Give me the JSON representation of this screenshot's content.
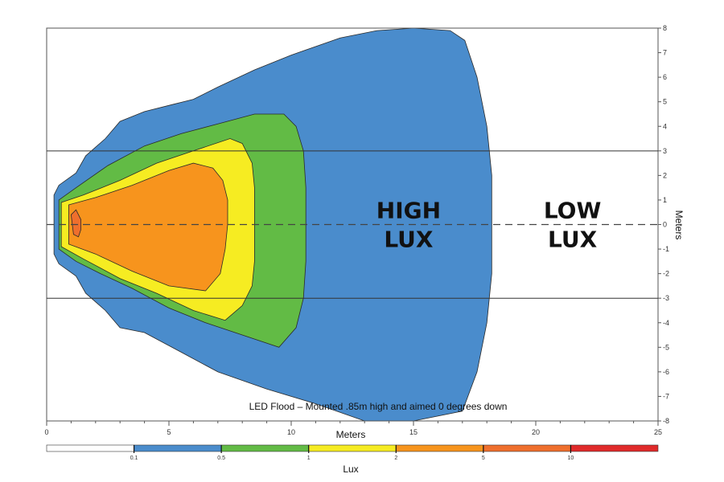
{
  "chart_data": {
    "type": "contour",
    "caption": "LED Flood – Mounted .85m high and aimed 0 degrees down",
    "xlabel": "Meters",
    "ylabel": "Meters",
    "xlim": [
      0,
      25
    ],
    "ylim": [
      -8,
      8
    ],
    "x_ticks": [
      "0",
      "5",
      "10",
      "15",
      "20",
      "25"
    ],
    "y_ticks": [
      "8",
      "7",
      "6",
      "5",
      "4",
      "3",
      "2",
      "1",
      "0",
      "-1",
      "-2",
      "-3",
      "-4",
      "-5",
      "-6",
      "-7",
      "-8"
    ],
    "reference_lines": {
      "y": [
        3,
        -3
      ],
      "dashed_y": 0
    },
    "annotations": [
      {
        "text_lines": [
          "HIGH",
          "LUX"
        ],
        "x": 14.8,
        "y": 0
      },
      {
        "text_lines": [
          "LOW",
          "LUX"
        ],
        "x": 21.5,
        "y": 0
      }
    ],
    "colorbar": {
      "title": "Lux",
      "ticks": [
        "0.1",
        "0.5",
        "1",
        "2",
        "5",
        "10"
      ],
      "colors": [
        "#ffffff",
        "#4a8ccc",
        "#62bb45",
        "#f6ec22",
        "#f7941d",
        "#ef6f2d",
        "#e02a2a"
      ]
    },
    "contours": [
      {
        "level": 0.1,
        "color": "#4a8ccc",
        "outline": [
          [
            0.3,
            1.2
          ],
          [
            0.5,
            1.6
          ],
          [
            1.2,
            2.1
          ],
          [
            1.6,
            2.8
          ],
          [
            2.4,
            3.5
          ],
          [
            3.0,
            4.2
          ],
          [
            3.5,
            4.4
          ],
          [
            4.0,
            4.6
          ],
          [
            5.2,
            4.9
          ],
          [
            6.0,
            5.1
          ],
          [
            7.0,
            5.6
          ],
          [
            8.5,
            6.3
          ],
          [
            10.0,
            6.9
          ],
          [
            12.0,
            7.6
          ],
          [
            13.5,
            7.9
          ],
          [
            15.0,
            8.0
          ],
          [
            16.5,
            7.9
          ],
          [
            17.1,
            7.5
          ],
          [
            17.6,
            6.0
          ],
          [
            18.0,
            4.0
          ],
          [
            18.2,
            2.0
          ],
          [
            18.2,
            0.0
          ],
          [
            18.2,
            -2.0
          ],
          [
            18.0,
            -4.0
          ],
          [
            17.6,
            -6.0
          ],
          [
            17.0,
            -7.6
          ],
          [
            15.0,
            -8.0
          ],
          [
            13.0,
            -8.0
          ],
          [
            11.0,
            -7.3
          ],
          [
            9.0,
            -6.7
          ],
          [
            7.0,
            -6.0
          ],
          [
            5.5,
            -5.2
          ],
          [
            4.0,
            -4.4
          ],
          [
            3.0,
            -4.2
          ],
          [
            2.4,
            -3.5
          ],
          [
            1.6,
            -2.8
          ],
          [
            1.2,
            -2.1
          ],
          [
            0.5,
            -1.6
          ],
          [
            0.3,
            -1.2
          ]
        ]
      },
      {
        "level": 0.5,
        "color": "#62bb45",
        "outline": [
          [
            0.5,
            1.0
          ],
          [
            1.2,
            1.5
          ],
          [
            2.5,
            2.4
          ],
          [
            4.0,
            3.2
          ],
          [
            5.5,
            3.7
          ],
          [
            7.0,
            4.1
          ],
          [
            8.5,
            4.5
          ],
          [
            9.7,
            4.5
          ],
          [
            10.2,
            4.0
          ],
          [
            10.5,
            3.0
          ],
          [
            10.6,
            1.5
          ],
          [
            10.6,
            0.0
          ],
          [
            10.6,
            -1.5
          ],
          [
            10.5,
            -3.0
          ],
          [
            10.2,
            -4.2
          ],
          [
            9.5,
            -5.0
          ],
          [
            8.0,
            -4.5
          ],
          [
            6.5,
            -4.0
          ],
          [
            5.0,
            -3.4
          ],
          [
            3.5,
            -2.6
          ],
          [
            2.2,
            -2.0
          ],
          [
            1.2,
            -1.5
          ],
          [
            0.5,
            -1.0
          ]
        ]
      },
      {
        "level": 1,
        "color": "#f6ec22",
        "outline": [
          [
            0.6,
            0.9
          ],
          [
            1.5,
            1.2
          ],
          [
            3.0,
            1.8
          ],
          [
            4.5,
            2.5
          ],
          [
            6.0,
            3.0
          ],
          [
            7.5,
            3.5
          ],
          [
            8.0,
            3.3
          ],
          [
            8.4,
            2.5
          ],
          [
            8.5,
            1.5
          ],
          [
            8.5,
            0.0
          ],
          [
            8.5,
            -1.5
          ],
          [
            8.4,
            -2.5
          ],
          [
            8.0,
            -3.3
          ],
          [
            7.3,
            -3.9
          ],
          [
            6.0,
            -3.5
          ],
          [
            4.5,
            -2.8
          ],
          [
            3.0,
            -2.2
          ],
          [
            1.5,
            -1.4
          ],
          [
            0.6,
            -0.9
          ]
        ]
      },
      {
        "level": 2,
        "color": "#f7941d",
        "outline": [
          [
            0.9,
            0.8
          ],
          [
            2.0,
            1.1
          ],
          [
            3.5,
            1.6
          ],
          [
            5.0,
            2.2
          ],
          [
            6.0,
            2.5
          ],
          [
            6.8,
            2.3
          ],
          [
            7.2,
            1.8
          ],
          [
            7.4,
            1.0
          ],
          [
            7.4,
            0.0
          ],
          [
            7.3,
            -1.0
          ],
          [
            7.1,
            -2.0
          ],
          [
            6.5,
            -2.7
          ],
          [
            5.0,
            -2.5
          ],
          [
            3.5,
            -1.9
          ],
          [
            2.0,
            -1.2
          ],
          [
            0.9,
            -0.8
          ]
        ]
      },
      {
        "level": 5,
        "color": "#ef6f2d",
        "outline": [
          [
            1.0,
            0.4
          ],
          [
            1.2,
            0.6
          ],
          [
            1.4,
            0.2
          ],
          [
            1.4,
            -0.2
          ],
          [
            1.3,
            -0.5
          ],
          [
            1.1,
            -0.4
          ]
        ]
      }
    ]
  }
}
